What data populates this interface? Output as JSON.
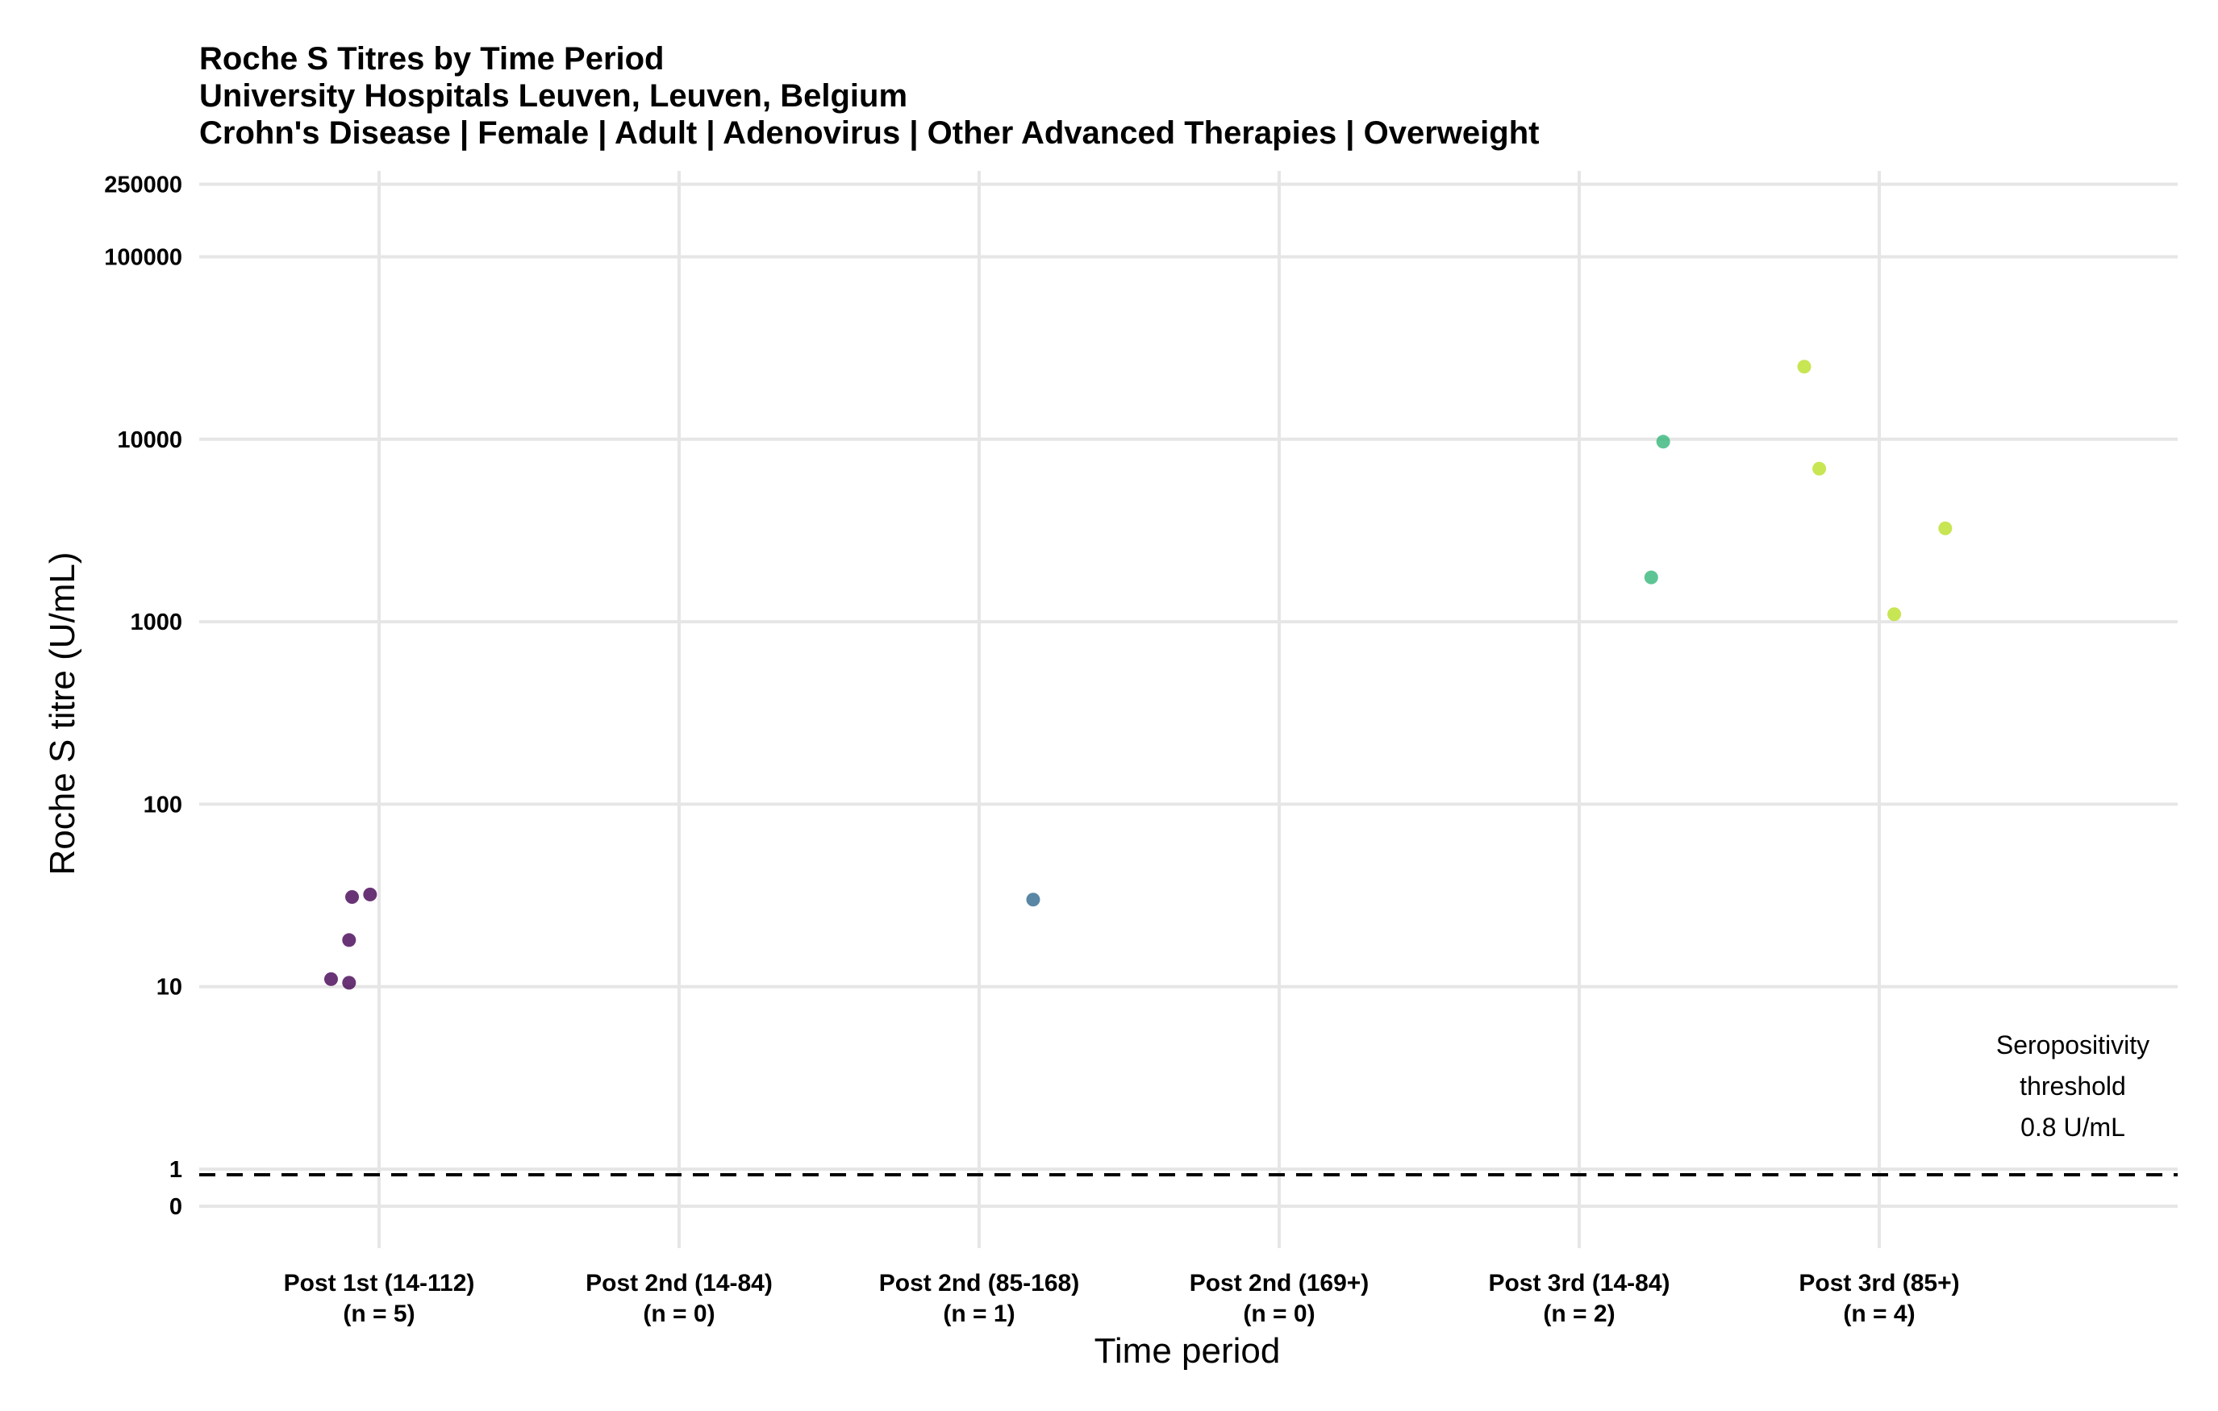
{
  "chart_data": {
    "type": "scatter",
    "title": "Roche S Titres by Time Period",
    "subtitle_lines": [
      "University Hospitals Leuven, Leuven, Belgium",
      "Crohn's Disease | Female | Adult | Adenovirus | Other Advanced Therapies | Overweight"
    ],
    "xlabel": "Time period",
    "ylabel": "Roche S titre (U/mL)",
    "y_scale": "pseudo-log",
    "y_ticks": [
      "0",
      "1",
      "10",
      "100",
      "1000",
      "10000",
      "100000",
      "250000"
    ],
    "y_tick_values": [
      0,
      1,
      10,
      100,
      1000,
      10000,
      100000,
      250000
    ],
    "ylim": [
      0,
      400000
    ],
    "grid": true,
    "legend": "none",
    "categories": [
      {
        "label": "Post 1st (14-112)",
        "n_label": "(n = 5)"
      },
      {
        "label": "Post 2nd (14-84)",
        "n_label": "(n = 0)"
      },
      {
        "label": "Post 2nd (85-168)",
        "n_label": "(n = 1)"
      },
      {
        "label": "Post 2nd (169+)",
        "n_label": "(n = 0)"
      },
      {
        "label": "Post 3rd (14-84)",
        "n_label": "(n = 2)"
      },
      {
        "label": "Post 3rd (85+)",
        "n_label": "(n = 4)"
      }
    ],
    "series": [
      {
        "category": "Post 1st (14-112)",
        "color": "#440154",
        "points": [
          {
            "jitter": -0.09,
            "y": 31
          },
          {
            "jitter": -0.03,
            "y": 32
          },
          {
            "jitter": -0.1,
            "y": 18
          },
          {
            "jitter": -0.16,
            "y": 11
          },
          {
            "jitter": -0.1,
            "y": 10.5
          }
        ]
      },
      {
        "category": "Post 2nd (85-168)",
        "color": "#31688E",
        "points": [
          {
            "jitter": 0.18,
            "y": 30
          }
        ]
      },
      {
        "category": "Post 3rd (14-84)",
        "color": "#35B779",
        "points": [
          {
            "jitter": 0.28,
            "y": 9700
          },
          {
            "jitter": 0.24,
            "y": 1750
          }
        ]
      },
      {
        "category": "Post 3rd (85+)",
        "color": "#BADE28",
        "points": [
          {
            "jitter": -0.25,
            "y": 25000
          },
          {
            "jitter": -0.2,
            "y": 6900
          },
          {
            "jitter": 0.22,
            "y": 3250
          },
          {
            "jitter": 0.05,
            "y": 1100
          }
        ]
      }
    ],
    "threshold": {
      "value": 0.8,
      "style": "dashed",
      "label_lines": [
        "Seropositivity",
        "threshold",
        "0.8 U/mL"
      ]
    }
  }
}
